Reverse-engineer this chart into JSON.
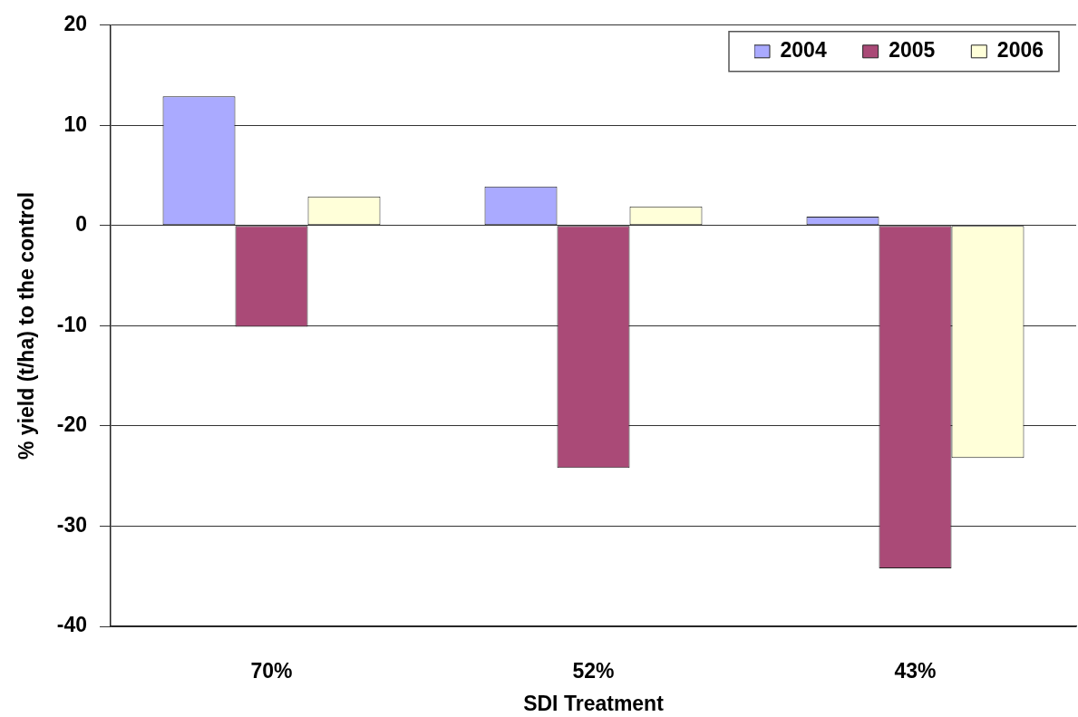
{
  "chart_data": {
    "type": "bar",
    "categories": [
      "70%",
      "52%",
      "43%"
    ],
    "series": [
      {
        "name": "2004",
        "color": "#aaaaff",
        "values": [
          12.9,
          3.9,
          0.9
        ]
      },
      {
        "name": "2005",
        "color": "#aa4a77",
        "values": [
          -10.1,
          -24.2,
          -34.2
        ]
      },
      {
        "name": "2006",
        "color": "#ffffd9",
        "values": [
          2.9,
          1.9,
          -23.2
        ]
      }
    ],
    "xlabel": "SDI Treatment",
    "ylabel": "% yield (t/ha) to the control",
    "ylim": [
      -40,
      20
    ],
    "yticks": [
      -40,
      -30,
      -20,
      -10,
      0,
      10,
      20
    ],
    "grid": "y",
    "legend": "top right"
  }
}
